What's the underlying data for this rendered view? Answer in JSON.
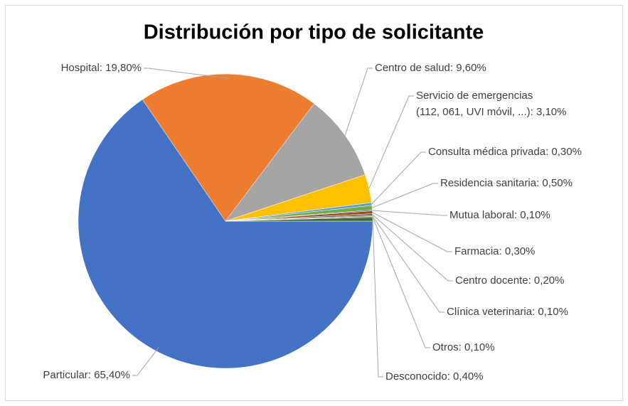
{
  "chart_data": {
    "type": "pie",
    "title": "Distribución por tipo de solicitante",
    "values": [
      65.4,
      19.8,
      9.6,
      3.1,
      0.3,
      0.5,
      0.1,
      0.3,
      0.2,
      0.1,
      0.1,
      0.4
    ],
    "value_labels": [
      "Particular: 65,40%",
      "Hospital: 19,80%",
      "Centro de salud: 9,60%",
      "Servicio de emergencias\n(112, 061, UVI móvil, ...): 3,10%",
      "Consulta médica privada: 0,30%",
      "Residencia sanitaria: 0,50%",
      "Mutua laboral: 0,10%",
      "Farmacia: 0,30%",
      "Centro docente: 0,20%",
      "Clínica veterinaria: 0,10%",
      "Otros: 0,10%",
      "Desconocido: 0,40%"
    ],
    "colors": [
      "#4472c4",
      "#ed7d31",
      "#a5a5a5",
      "#ffc000",
      "#5b9bd5",
      "#70ad47",
      "#264478",
      "#9e480e",
      "#636363",
      "#997300",
      "#255e91",
      "#43682b"
    ]
  }
}
